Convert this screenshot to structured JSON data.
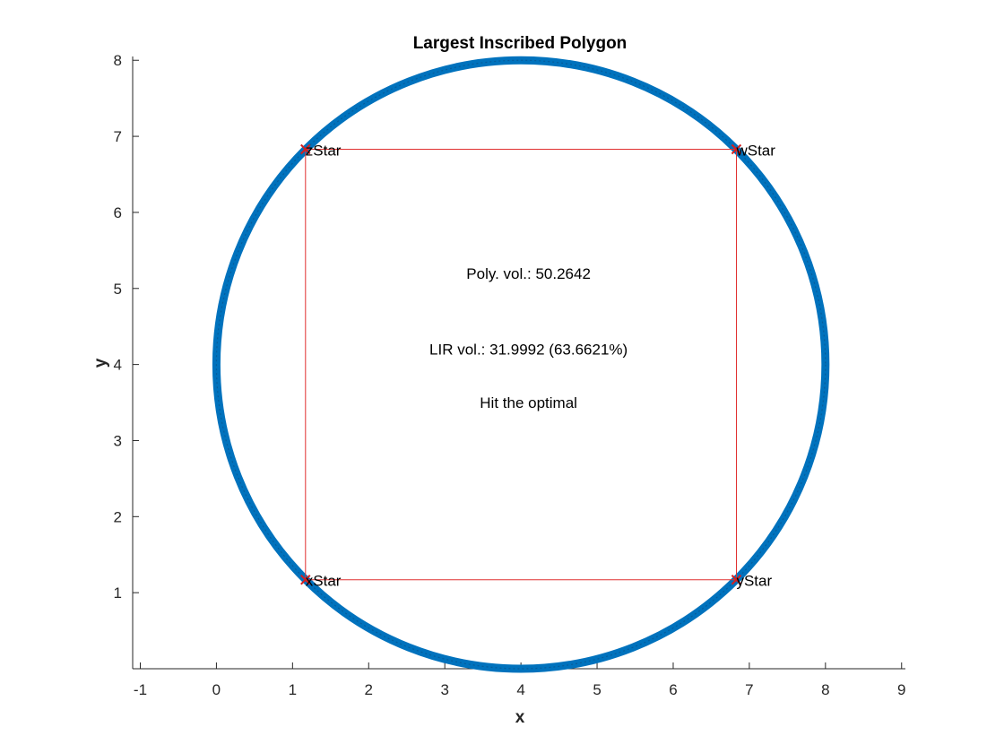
{
  "chart_data": {
    "type": "scatter",
    "title": "Largest Inscribed Polygon",
    "xlabel": "x",
    "ylabel": "y",
    "xlim": [
      -1.1,
      9.05
    ],
    "ylim": [
      0,
      8.05
    ],
    "xticks": [
      -1,
      0,
      1,
      2,
      3,
      4,
      5,
      6,
      7,
      8,
      9
    ],
    "yticks": [
      1,
      2,
      3,
      4,
      5,
      6,
      7,
      8
    ],
    "grid": false,
    "colors": {
      "circle": "#0072BD",
      "circle_dark": "#0a4f86",
      "rectangle": "#e03030",
      "vertex_marker": "#d62020",
      "axis": "#262626"
    },
    "circle": {
      "center": [
        4,
        4
      ],
      "radius": 4
    },
    "rectangle": {
      "vertices": [
        {
          "name": "xStar",
          "x": 1.17,
          "y": 1.17
        },
        {
          "name": "yStar",
          "x": 6.83,
          "y": 1.17
        },
        {
          "name": "wStar",
          "x": 6.83,
          "y": 6.83
        },
        {
          "name": "zStar",
          "x": 1.17,
          "y": 6.83
        }
      ]
    },
    "annotations": [
      {
        "text": "Poly. vol.: 50.2642",
        "x": 4.1,
        "y": 5.2
      },
      {
        "text": "LIR vol.: 31.9992 (63.6621%)",
        "x": 4.1,
        "y": 4.2
      },
      {
        "text": "Hit the optimal",
        "x": 4.1,
        "y": 3.5
      }
    ]
  }
}
